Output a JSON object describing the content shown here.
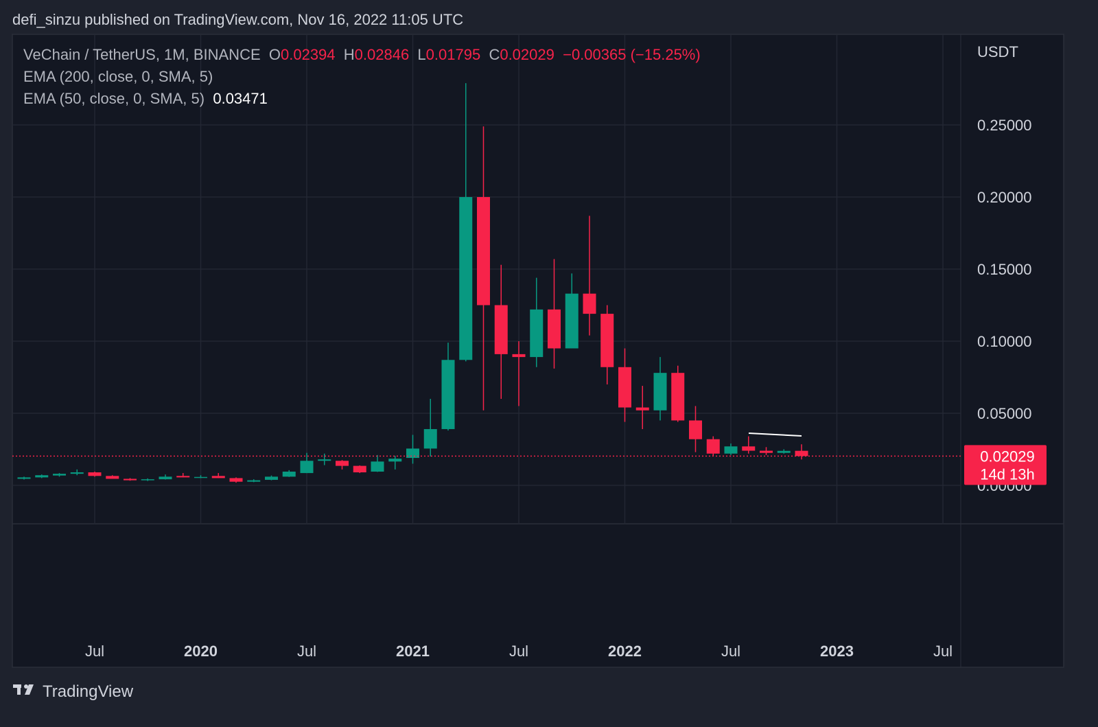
{
  "header": {
    "published": "defi_sinzu published on TradingView.com, Nov 16, 2022 11:05 UTC",
    "brand": "TradingView"
  },
  "chart_data": {
    "type": "candlestick",
    "symbol": "VeChain / TetherUS, 1M, BINANCE",
    "ohlc_letters": [
      "O",
      "H",
      "L",
      "C"
    ],
    "change_label": "−0.00365 (−15.25%)",
    "indicators": [
      {
        "name": "EMA (200, close, 0, SMA, 5)"
      },
      {
        "name": "EMA (50, close, 0, SMA, 5)",
        "value": 0.03471
      }
    ],
    "currency": "USDT",
    "countdown": "14d 13h",
    "colors": {
      "up": "#089981",
      "down": "#f7234a"
    },
    "x": [
      "2019-03",
      "2019-04",
      "2019-05",
      "2019-06",
      "2019-07",
      "2019-08",
      "2019-09",
      "2019-10",
      "2019-11",
      "2019-12",
      "2020-01",
      "2020-02",
      "2020-03",
      "2020-04",
      "2020-05",
      "2020-06",
      "2020-07",
      "2020-08",
      "2020-09",
      "2020-10",
      "2020-11",
      "2020-12",
      "2021-01",
      "2021-02",
      "2021-03",
      "2021-04",
      "2021-05",
      "2021-06",
      "2021-07",
      "2021-08",
      "2021-09",
      "2021-10",
      "2021-11",
      "2021-12",
      "2022-01",
      "2022-02",
      "2022-03",
      "2022-04",
      "2022-05",
      "2022-06",
      "2022-07",
      "2022-08",
      "2022-09",
      "2022-10",
      "2022-11"
    ],
    "open": [
      0.0045,
      0.0055,
      0.0068,
      0.008,
      0.009,
      0.0065,
      0.0045,
      0.0035,
      0.0042,
      0.0065,
      0.0055,
      0.0065,
      0.005,
      0.0025,
      0.0038,
      0.006,
      0.0085,
      0.017,
      0.017,
      0.0135,
      0.0095,
      0.0165,
      0.019,
      0.0255,
      0.039,
      0.087,
      0.2,
      0.125,
      0.091,
      0.089,
      0.122,
      0.095,
      0.133,
      0.119,
      0.082,
      0.054,
      0.052,
      0.078,
      0.045,
      0.032,
      0.022,
      0.027,
      0.024,
      0.0225,
      0.02394
    ],
    "high": [
      0.006,
      0.0075,
      0.0085,
      0.011,
      0.0095,
      0.007,
      0.005,
      0.0048,
      0.0075,
      0.0085,
      0.007,
      0.0085,
      0.0055,
      0.0042,
      0.0068,
      0.0105,
      0.0225,
      0.022,
      0.0175,
      0.0138,
      0.021,
      0.0205,
      0.035,
      0.06,
      0.099,
      0.279,
      0.249,
      0.153,
      0.1,
      0.144,
      0.157,
      0.147,
      0.187,
      0.125,
      0.095,
      0.069,
      0.089,
      0.083,
      0.055,
      0.034,
      0.029,
      0.034,
      0.0265,
      0.025,
      0.02846
    ],
    "low": [
      0.004,
      0.005,
      0.006,
      0.007,
      0.006,
      0.0045,
      0.0032,
      0.003,
      0.004,
      0.0055,
      0.005,
      0.005,
      0.0018,
      0.0022,
      0.0035,
      0.0058,
      0.0085,
      0.014,
      0.011,
      0.0085,
      0.0093,
      0.011,
      0.015,
      0.02,
      0.038,
      0.086,
      0.052,
      0.06,
      0.055,
      0.082,
      0.081,
      0.095,
      0.104,
      0.07,
      0.044,
      0.039,
      0.045,
      0.044,
      0.023,
      0.02,
      0.021,
      0.022,
      0.021,
      0.022,
      0.01795
    ],
    "close": [
      0.0055,
      0.007,
      0.008,
      0.009,
      0.0065,
      0.0045,
      0.0035,
      0.0042,
      0.006,
      0.0055,
      0.0058,
      0.005,
      0.0025,
      0.0035,
      0.006,
      0.0095,
      0.017,
      0.018,
      0.0135,
      0.009,
      0.0165,
      0.0185,
      0.0255,
      0.039,
      0.087,
      0.2,
      0.125,
      0.091,
      0.089,
      0.122,
      0.095,
      0.133,
      0.119,
      0.082,
      0.054,
      0.052,
      0.078,
      0.045,
      0.032,
      0.022,
      0.027,
      0.024,
      0.0225,
      0.0239,
      0.02029
    ],
    "ylim": [
      -0.0267,
      0.3129
    ],
    "yticks": [
      {
        "value": 0,
        "label": "0.00000"
      },
      {
        "value": 0.05,
        "label": "0.05000"
      },
      {
        "value": 0.1,
        "label": "0.10000"
      },
      {
        "value": 0.15,
        "label": "0.15000"
      },
      {
        "value": 0.2,
        "label": "0.20000"
      },
      {
        "value": 0.25,
        "label": "0.25000"
      }
    ],
    "xticks": [
      {
        "value": "2019-07",
        "label": "Jul"
      },
      {
        "value": "2020-01",
        "label": "2020"
      },
      {
        "value": "2020-07",
        "label": "Jul"
      },
      {
        "value": "2021-01",
        "label": "2021"
      },
      {
        "value": "2021-07",
        "label": "Jul"
      },
      {
        "value": "2022-01",
        "label": "2022"
      },
      {
        "value": "2022-07",
        "label": "Jul"
      },
      {
        "value": "2023-01",
        "label": "2023"
      },
      {
        "value": "2023-07",
        "label": "Jul"
      }
    ],
    "grid": true
  }
}
